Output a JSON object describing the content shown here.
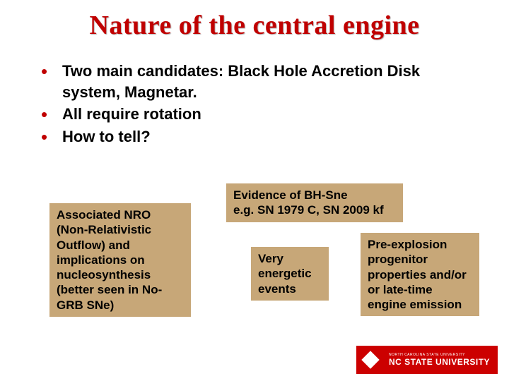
{
  "title": "Nature of the central engine",
  "bullets": [
    "Two main candidates: Black Hole Accretion Disk system, Magnetar.",
    "All require rotation",
    "How to tell?"
  ],
  "boxes": {
    "b1": "Associated NRO (Non-Relativistic Outflow) and implications on nucleosynthesis (better seen in No-GRB SNe)",
    "b2": "Evidence of BH-Sne\ne.g. SN 1979 C, SN 2009 kf",
    "b3": "Very energetic events",
    "b4": "Pre-explosion progenitor properties and/or or late-time engine emission"
  },
  "logo": {
    "sub": "NORTH CAROLINA STATE UNIVERSITY",
    "main": "NC STATE UNIVERSITY"
  },
  "colors": {
    "title": "#c00000",
    "bullet_dot": "#c00000",
    "box_bg": "#c7a778",
    "logo_bg": "#cc0000",
    "text": "#000000",
    "bg": "#ffffff"
  },
  "fonts": {
    "title_size": 38,
    "bullet_size": 22,
    "box_size": 17
  }
}
